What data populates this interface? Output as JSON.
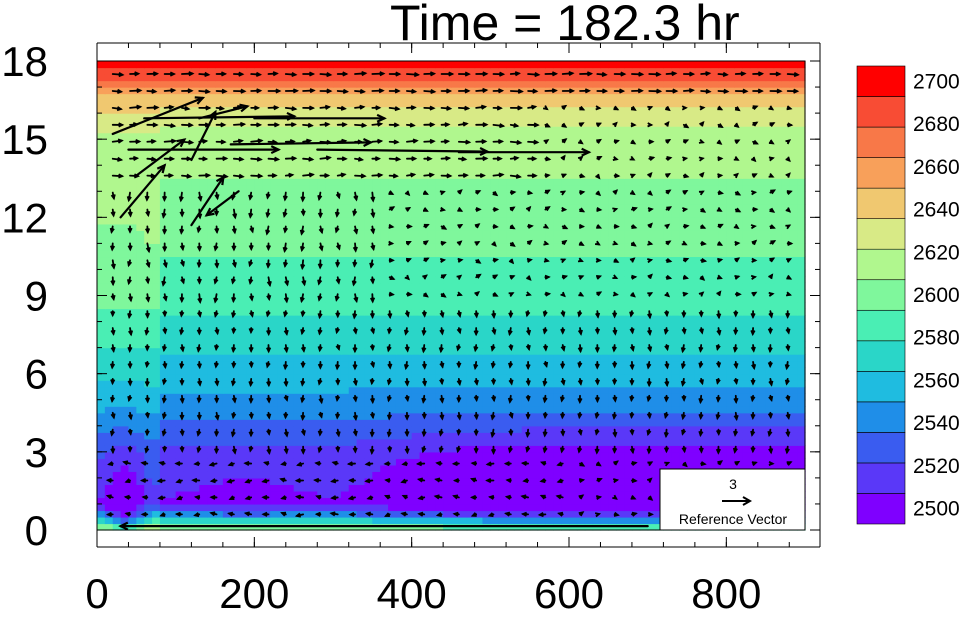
{
  "title": "Time = 182.3 hr",
  "chart_data": {
    "type": "heatmap",
    "title": "Time = 182.3 hr",
    "xlabel": "",
    "ylabel": "",
    "xlim": [
      0,
      900
    ],
    "ylim": [
      0,
      18
    ],
    "x_ticks": [
      0,
      200,
      400,
      600,
      800
    ],
    "y_ticks": [
      0,
      3,
      6,
      9,
      12,
      15,
      18
    ],
    "colorbar": {
      "levels": [
        2500,
        2520,
        2540,
        2560,
        2580,
        2600,
        2620,
        2640,
        2660,
        2680,
        2700
      ],
      "labels": [
        "2500",
        "2520",
        "2540",
        "2560",
        "2580",
        "2600",
        "2620",
        "2640",
        "2660",
        "2680",
        "2700"
      ],
      "colors": [
        "#7f00ff",
        "#5a38f8",
        "#3a5cf0",
        "#1f8ee8",
        "#1fbce0",
        "#2ad6c8",
        "#4aeeb4",
        "#7ff79c",
        "#b0f78e",
        "#d8ea86",
        "#f0c870",
        "#f8a05a",
        "#f87848",
        "#f84c34",
        "#ff0000"
      ]
    },
    "field_profile": [
      {
        "z": 0.0,
        "value": 2595
      },
      {
        "z": 1.0,
        "value": 2500
      },
      {
        "z": 3.0,
        "value": 2515
      },
      {
        "z": 5.0,
        "value": 2545
      },
      {
        "z": 7.0,
        "value": 2565
      },
      {
        "z": 9.0,
        "value": 2585
      },
      {
        "z": 12.0,
        "value": 2600
      },
      {
        "z": 15.0,
        "value": 2615
      },
      {
        "z": 16.5,
        "value": 2640
      },
      {
        "z": 17.3,
        "value": 2680
      },
      {
        "z": 18.0,
        "value": 2705
      }
    ],
    "vectors": {
      "reference_magnitude": 3,
      "reference_label": "Reference Vector",
      "reference_value_text": "3",
      "strong_jets": [
        {
          "x": 40,
          "z": 14.6,
          "u": 30,
          "v": 0.0
        },
        {
          "x": 60,
          "z": 15.8,
          "u": 30,
          "v": 0.1
        },
        {
          "x": 170,
          "z": 14.8,
          "u": 28,
          "v": 0.1
        },
        {
          "x": 200,
          "z": 15.8,
          "u": 26,
          "v": 0.0
        },
        {
          "x": 20,
          "z": 15.2,
          "u": 18,
          "v": 1.8
        },
        {
          "x": 280,
          "z": 14.6,
          "u": 34,
          "v": -0.1
        },
        {
          "x": 460,
          "z": 14.5,
          "u": 26,
          "v": 0.0
        }
      ],
      "surface_flow": {
        "x_start": 700,
        "x_end": 30,
        "z": 0.15
      }
    },
    "inset_label": "Reference Vector"
  }
}
